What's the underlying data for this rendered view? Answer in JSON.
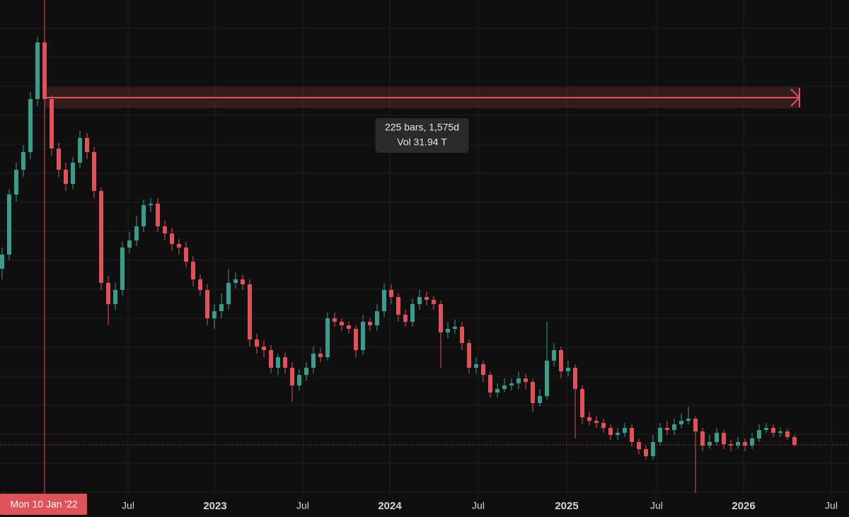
{
  "chart_data": {
    "type": "candlestick",
    "xlim": [
      -0.3,
      119.7
    ],
    "ylim": [
      0,
      650
    ],
    "yticks": [
      4,
      45,
      86,
      127,
      168,
      209,
      250,
      291,
      332,
      373,
      414,
      455,
      496,
      537,
      578,
      619,
      660
    ],
    "grid": true,
    "xticks": [
      {
        "value": 17.8,
        "label": "Jul"
      },
      {
        "value": 30.1,
        "label": "2023"
      },
      {
        "value": 42.5,
        "label": "Jul"
      },
      {
        "value": 54.8,
        "label": "2024"
      },
      {
        "value": 67.3,
        "label": "Jul"
      },
      {
        "value": 79.8,
        "label": "2025"
      },
      {
        "value": 92.5,
        "label": "Jul"
      },
      {
        "value": 104.8,
        "label": "2026"
      },
      {
        "value": 117.2,
        "label": "Jul"
      }
    ],
    "up_color": "#3b9c8c",
    "down_color": "#e0525a",
    "open": [
      320,
      340,
      425,
      460,
      485,
      560,
      640,
      560,
      490,
      460,
      440,
      470,
      505,
      485,
      430,
      300,
      270,
      290,
      350,
      360,
      380,
      410,
      412,
      380,
      370,
      355,
      350,
      330,
      305,
      290,
      250,
      260,
      270,
      300,
      305,
      298,
      220,
      210,
      205,
      180,
      195,
      180,
      155,
      170,
      180,
      200,
      195,
      250,
      245,
      240,
      235,
      205,
      245,
      240,
      260,
      290,
      280,
      255,
      245,
      270,
      280,
      276,
      270,
      230,
      235,
      238,
      215,
      180,
      185,
      170,
      145,
      150,
      155,
      158,
      165,
      160,
      130,
      140,
      190,
      205,
      175,
      180,
      150,
      110,
      105,
      102,
      95,
      85,
      88,
      95,
      75,
      65,
      55,
      75,
      95,
      92,
      100,
      105,
      108,
      90,
      70,
      75,
      88,
      72,
      70,
      75,
      70,
      80,
      92,
      95,
      88,
      90,
      82
    ],
    "high": [
      350,
      432,
      470,
      495,
      570,
      648,
      645,
      565,
      498,
      470,
      478,
      515,
      512,
      492,
      435,
      310,
      300,
      358,
      372,
      395,
      418,
      420,
      420,
      388,
      378,
      362,
      358,
      338,
      312,
      298,
      270,
      285,
      320,
      315,
      312,
      305,
      228,
      218,
      212,
      200,
      202,
      188,
      178,
      188,
      210,
      208,
      258,
      258,
      250,
      245,
      240,
      255,
      250,
      270,
      300,
      298,
      285,
      262,
      278,
      290,
      288,
      282,
      275,
      245,
      248,
      245,
      220,
      195,
      190,
      175,
      158,
      165,
      165,
      175,
      172,
      165,
      150,
      245,
      215,
      210,
      190,
      185,
      155,
      118,
      112,
      108,
      100,
      95,
      102,
      100,
      80,
      70,
      85,
      102,
      105,
      108,
      115,
      125,
      112,
      95,
      85,
      95,
      92,
      78,
      82,
      80,
      88,
      100,
      102,
      100,
      96,
      94,
      85
    ],
    "low": [
      305,
      332,
      415,
      450,
      475,
      550,
      550,
      480,
      450,
      430,
      432,
      462,
      475,
      420,
      290,
      240,
      262,
      282,
      342,
      352,
      372,
      400,
      372,
      360,
      345,
      340,
      322,
      295,
      282,
      240,
      235,
      250,
      262,
      292,
      290,
      210,
      200,
      195,
      172,
      170,
      172,
      132,
      148,
      162,
      172,
      188,
      190,
      238,
      232,
      228,
      195,
      198,
      232,
      232,
      252,
      270,
      245,
      238,
      238,
      262,
      268,
      262,
      180,
      222,
      228,
      205,
      172,
      172,
      160,
      138,
      138,
      145,
      148,
      150,
      150,
      118,
      125,
      135,
      182,
      165,
      168,
      80,
      100,
      98,
      95,
      88,
      78,
      78,
      82,
      68,
      58,
      50,
      50,
      70,
      85,
      85,
      95,
      100,
      3,
      62,
      65,
      70,
      65,
      62,
      65,
      62,
      65,
      75,
      88,
      82,
      82,
      78,
      68
    ],
    "close": [
      340,
      425,
      460,
      485,
      560,
      640,
      560,
      490,
      460,
      440,
      470,
      505,
      485,
      430,
      300,
      270,
      290,
      350,
      360,
      380,
      410,
      412,
      380,
      370,
      355,
      350,
      330,
      305,
      290,
      250,
      260,
      270,
      300,
      305,
      298,
      220,
      210,
      205,
      180,
      195,
      180,
      155,
      170,
      180,
      200,
      195,
      250,
      245,
      240,
      235,
      205,
      245,
      240,
      260,
      290,
      280,
      255,
      245,
      270,
      280,
      276,
      270,
      230,
      235,
      238,
      215,
      180,
      185,
      170,
      145,
      150,
      155,
      158,
      165,
      160,
      130,
      140,
      190,
      205,
      175,
      180,
      150,
      110,
      105,
      102,
      95,
      85,
      88,
      95,
      75,
      65,
      55,
      75,
      95,
      92,
      100,
      105,
      108,
      90,
      70,
      75,
      88,
      72,
      70,
      75,
      70,
      80,
      92,
      95,
      88,
      90,
      82,
      71
    ],
    "crosshair": {
      "x": 6,
      "label": "Mon 10 Jan '22"
    },
    "measure": {
      "from": 6,
      "to": 112.7,
      "level": 562,
      "color": "#e0525a",
      "lines": [
        "225 bars, 1,575d",
        "Vol 31.94 T"
      ]
    }
  }
}
